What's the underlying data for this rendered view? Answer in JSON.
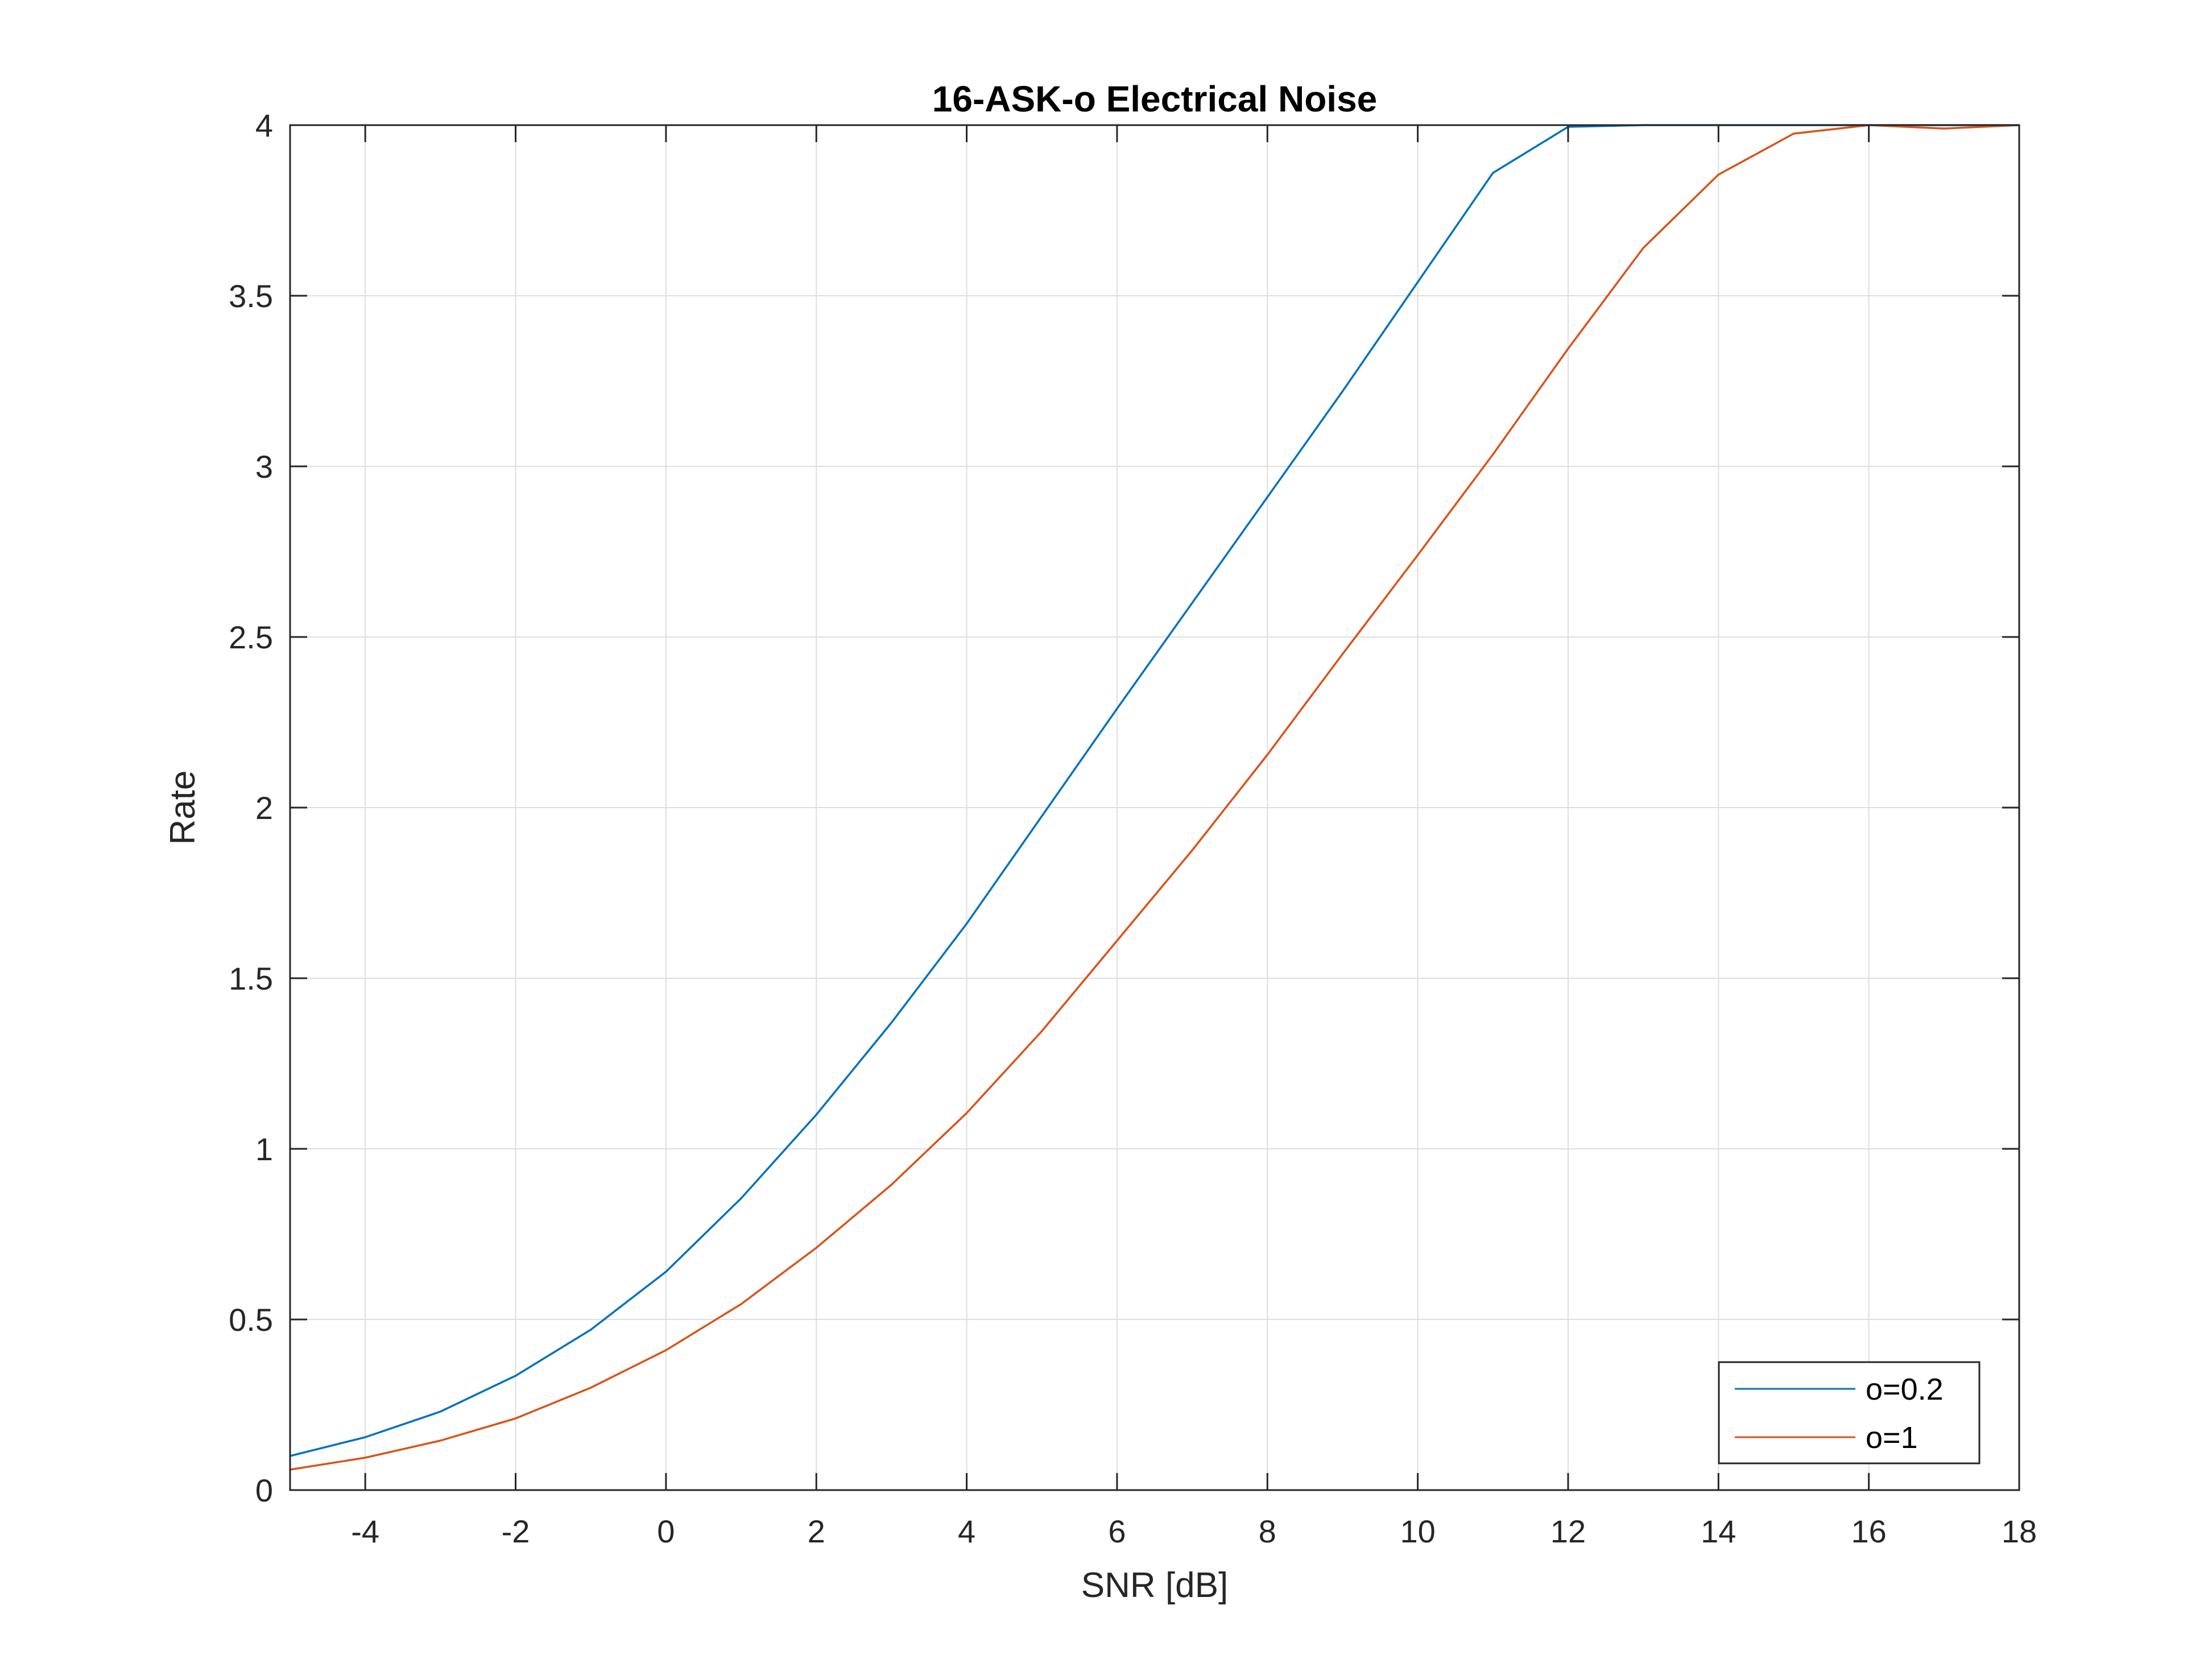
{
  "chart_data": {
    "type": "line",
    "title": "16-ASK-o Electrical Noise",
    "xlabel": "SNR [dB]",
    "ylabel": "Rate",
    "xlim": [
      -5,
      18
    ],
    "ylim": [
      0,
      4
    ],
    "xticks": [
      -4,
      -2,
      0,
      2,
      4,
      6,
      8,
      10,
      12,
      14,
      16,
      18
    ],
    "yticks": [
      0,
      0.5,
      1,
      1.5,
      2,
      2.5,
      3,
      3.5,
      4
    ],
    "grid": true,
    "legend_position": "bottom-right",
    "x": [
      -5,
      -4,
      -3,
      -2,
      -1,
      0,
      1,
      2,
      3,
      4,
      5,
      6,
      7,
      8,
      9,
      10,
      11,
      12,
      13,
      14,
      15,
      16,
      17,
      18
    ],
    "series": [
      {
        "name": "o=0.2",
        "color": "#0072BD",
        "values": [
          0.1,
          0.155,
          0.23,
          0.335,
          0.47,
          0.64,
          0.855,
          1.1,
          1.37,
          1.66,
          1.975,
          2.29,
          2.6,
          2.91,
          3.22,
          3.54,
          3.86,
          3.995,
          4.0,
          4.0,
          4.0,
          4.0,
          4.0,
          4.0
        ]
      },
      {
        "name": "o=1",
        "color": "#D95319",
        "values": [
          0.06,
          0.095,
          0.145,
          0.21,
          0.3,
          0.41,
          0.545,
          0.71,
          0.895,
          1.105,
          1.345,
          1.61,
          1.875,
          2.155,
          2.45,
          2.74,
          3.035,
          3.345,
          3.64,
          3.855,
          3.975,
          4.0,
          3.99,
          4.0
        ]
      }
    ]
  }
}
